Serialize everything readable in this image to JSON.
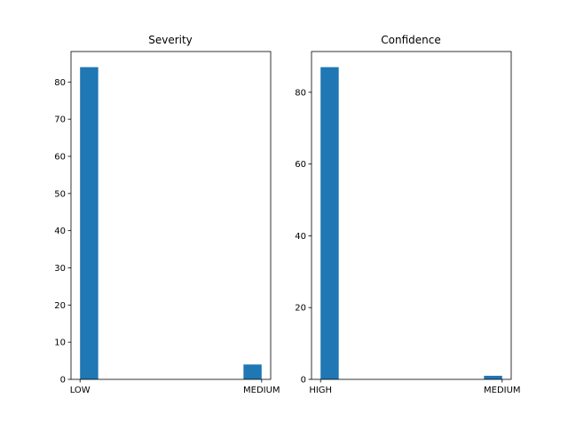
{
  "chart_data": [
    {
      "type": "bar",
      "title": "Severity",
      "categories": [
        "LOW",
        "MEDIUM"
      ],
      "values": [
        84,
        4
      ],
      "yticks": [
        0,
        10,
        20,
        30,
        40,
        50,
        60,
        70,
        80
      ],
      "ylim": [
        0,
        88.2
      ],
      "xlabel": "",
      "ylabel": "",
      "color": "#1f77b4"
    },
    {
      "type": "bar",
      "title": "Confidence",
      "categories": [
        "HIGH",
        "MEDIUM"
      ],
      "values": [
        87,
        1
      ],
      "yticks": [
        0,
        20,
        40,
        60,
        80
      ],
      "ylim": [
        0,
        91.35
      ],
      "xlabel": "",
      "ylabel": "",
      "color": "#1f77b4"
    }
  ]
}
